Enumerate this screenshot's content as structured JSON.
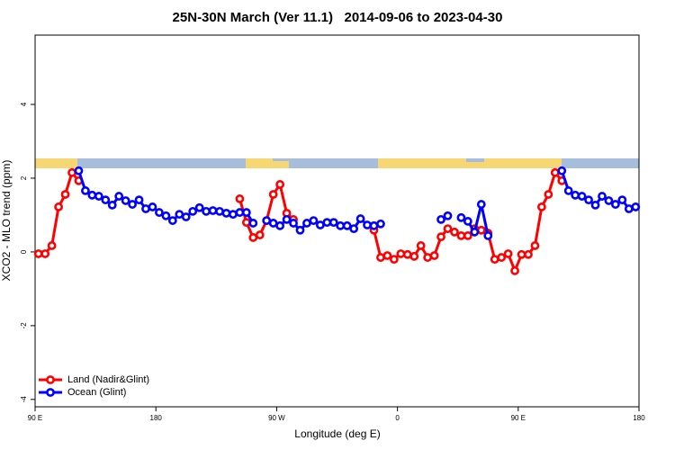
{
  "chart_data": {
    "type": "line",
    "title": "25N-30N March (Ver 11.1)   2014-09-06 to 2023-04-30",
    "x_label": "Longitude (deg E)",
    "y_label": "XCO2 - MLO trend (ppm)",
    "xlim": [
      90,
      540
    ],
    "ylim": [
      -4.2,
      5.88
    ],
    "xticks": [
      {
        "value": 90,
        "label": "90 E"
      },
      {
        "value": 180,
        "label": "180"
      },
      {
        "value": 270,
        "label": "90 W"
      },
      {
        "value": 360,
        "label": "0"
      },
      {
        "value": 450,
        "label": "90 E"
      },
      {
        "value": 540,
        "label": "180"
      }
    ],
    "yticks": [
      -4,
      -2,
      0,
      2,
      4
    ],
    "legend": "bottom-left",
    "x": [
      92.5,
      97.5,
      102.5,
      107.5,
      112.5,
      117.5,
      122.5,
      127.5,
      132.5,
      137.5,
      142.5,
      147.5,
      152.5,
      157.5,
      162.5,
      167.5,
      172.5,
      177.5,
      182.5,
      187.5,
      192.5,
      197.5,
      202.5,
      207.5,
      212.5,
      217.5,
      222.5,
      227.5,
      232.5,
      237.5,
      242.5,
      247.5,
      252.5,
      257.5,
      262.5,
      267.5,
      272.5,
      277.5,
      282.5,
      287.5,
      292.5,
      297.5,
      302.5,
      307.5,
      312.5,
      317.5,
      322.5,
      327.5,
      332.5,
      337.5,
      342.5,
      347.5,
      352.5,
      357.5,
      362.5,
      367.5,
      372.5,
      377.5,
      382.5,
      387.5,
      392.5,
      397.5,
      402.5,
      407.5,
      412.5,
      417.5,
      422.5,
      427.5,
      432.5,
      437.5,
      442.5,
      447.5,
      452.5,
      457.5,
      462.5,
      467.5,
      472.5,
      477.5,
      482.5,
      487.5,
      492.5,
      497.5,
      502.5,
      507.5,
      512.5,
      517.5,
      522.5,
      527.5,
      532.5,
      537.5
    ],
    "series": [
      {
        "name": "Land (Nadir&Glint)",
        "color": "#ff0000",
        "values": [
          -0.05,
          -0.05,
          0.17,
          1.22,
          1.56,
          2.15,
          1.93,
          null,
          null,
          null,
          null,
          null,
          null,
          null,
          null,
          null,
          null,
          null,
          null,
          null,
          null,
          null,
          null,
          null,
          null,
          null,
          null,
          null,
          null,
          null,
          1.44,
          0.8,
          0.39,
          0.46,
          0.85,
          1.56,
          1.83,
          1.05,
          0.88,
          null,
          null,
          null,
          null,
          null,
          null,
          null,
          null,
          null,
          null,
          null,
          0.59,
          -0.15,
          -0.1,
          -0.2,
          -0.05,
          -0.07,
          -0.12,
          0.17,
          -0.15,
          -0.1,
          0.41,
          0.63,
          0.54,
          0.44,
          0.44,
          0.63,
          0.59,
          0.51,
          -0.2,
          -0.15,
          -0.05,
          -0.51,
          -0.07,
          -0.07,
          0.17,
          1.22,
          1.56,
          2.15,
          1.93,
          null,
          null,
          null,
          null,
          null,
          null,
          null,
          null,
          null,
          null,
          null
        ]
      },
      {
        "name": "Ocean (Glint)",
        "color": "#0000ff",
        "values": [
          null,
          null,
          null,
          null,
          null,
          null,
          2.2,
          1.66,
          1.54,
          1.51,
          1.41,
          1.27,
          1.51,
          1.39,
          1.29,
          1.41,
          1.17,
          1.22,
          1.07,
          0.98,
          0.85,
          1.02,
          0.95,
          1.1,
          1.2,
          1.1,
          1.12,
          1.1,
          1.05,
          1.02,
          1.07,
          1.07,
          0.78,
          null,
          0.85,
          0.78,
          0.71,
          0.88,
          0.78,
          0.59,
          0.78,
          0.85,
          0.73,
          0.8,
          0.8,
          0.71,
          0.71,
          0.63,
          0.9,
          0.73,
          0.71,
          0.76,
          null,
          null,
          null,
          null,
          null,
          null,
          null,
          null,
          0.88,
          0.98,
          null,
          0.93,
          0.83,
          0.54,
          1.29,
          0.44,
          null,
          null,
          null,
          null,
          null,
          null,
          null,
          null,
          null,
          null,
          2.2,
          1.66,
          1.54,
          1.51,
          1.41,
          1.27,
          1.51,
          1.39,
          1.29,
          1.41,
          1.17,
          1.22
        ]
      }
    ]
  }
}
